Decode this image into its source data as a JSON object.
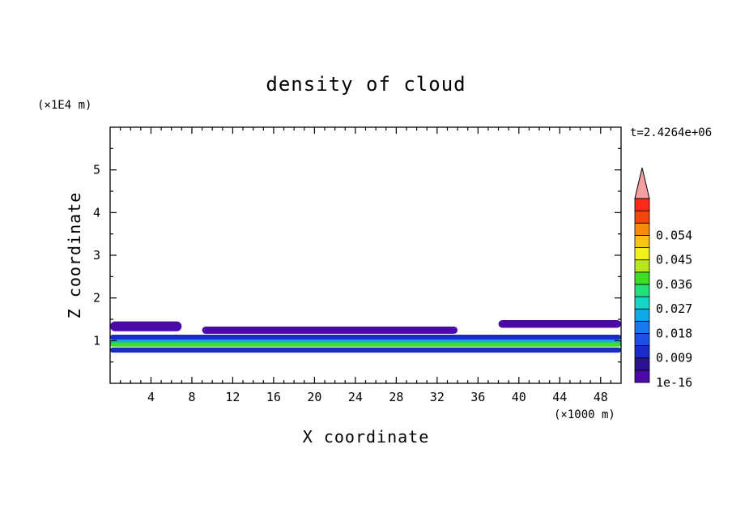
{
  "chart_data": {
    "type": "heatmap",
    "title": "density of cloud",
    "time_label": "t=2.4264e+06",
    "xlabel": "X coordinate",
    "ylabel": "Z coordinate",
    "x_unit": "(×1000 m)",
    "y_unit": "(×1E4 m)",
    "xlim": [
      0,
      50
    ],
    "ylim": [
      0,
      6
    ],
    "x_ticks": [
      4,
      8,
      12,
      16,
      20,
      24,
      28,
      32,
      36,
      40,
      44,
      48
    ],
    "x_tick_labels": [
      "4",
      "8",
      "12",
      "16",
      "20",
      "24",
      "28",
      "32",
      "36",
      "40",
      "44",
      "48"
    ],
    "y_ticks": [
      1,
      2,
      3,
      4,
      5
    ],
    "y_tick_labels": [
      "1",
      "2",
      "3",
      "4",
      "5"
    ],
    "colorbar": {
      "levels": [
        1e-16,
        0.0045,
        0.009,
        0.0135,
        0.018,
        0.0225,
        0.027,
        0.0315,
        0.036,
        0.0405,
        0.045,
        0.0495,
        0.054,
        0.0585
      ],
      "colors": [
        "#4b0aa8",
        "#2a1290",
        "#1a2cc8",
        "#1e4fe6",
        "#1a78f0",
        "#10a8e8",
        "#16d6c8",
        "#22e07a",
        "#3edc22",
        "#b8e81c",
        "#f2f21a",
        "#f8c414",
        "#f78c0c",
        "#f2460c",
        "#ff2a1a"
      ],
      "extend_color": "#f4a0a0",
      "labels": [
        {
          "value": 1e-16,
          "text": "1e-16"
        },
        {
          "value": 0.009,
          "text": "0.009"
        },
        {
          "value": 0.018,
          "text": "0.018"
        },
        {
          "value": 0.027,
          "text": "0.027"
        },
        {
          "value": 0.036,
          "text": "0.036"
        },
        {
          "value": 0.045,
          "text": "0.045"
        },
        {
          "value": 0.054,
          "text": "0.054"
        }
      ]
    },
    "cloud_layers": [
      {
        "name": "upper-layer-left",
        "x": [
          0,
          7
        ],
        "z": [
          1.22,
          1.45
        ],
        "level": 0
      },
      {
        "name": "upper-layer-mid",
        "x": [
          9,
          34
        ],
        "z": [
          1.16,
          1.33
        ],
        "level": 0
      },
      {
        "name": "upper-layer-right",
        "x": [
          38,
          50
        ],
        "z": [
          1.3,
          1.48
        ],
        "level": 0
      },
      {
        "name": "core-top",
        "x": [
          0,
          50
        ],
        "z": [
          1.02,
          1.14
        ],
        "level": 2
      },
      {
        "name": "core-mid",
        "x": [
          0,
          50
        ],
        "z": [
          0.9,
          1.02
        ],
        "level": 5
      },
      {
        "name": "core-bright",
        "x": [
          0,
          50
        ],
        "z": [
          0.86,
          0.96
        ],
        "level": 8
      },
      {
        "name": "core-bottom",
        "x": [
          0,
          50
        ],
        "z": [
          0.72,
          0.84
        ],
        "level": 2
      }
    ]
  }
}
